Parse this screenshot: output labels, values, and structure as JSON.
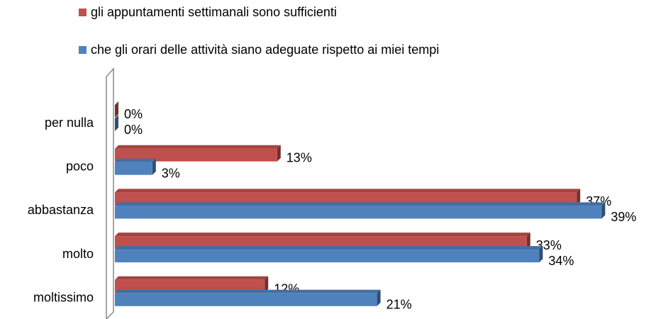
{
  "chart_data": {
    "type": "bar",
    "orientation": "horizontal",
    "categories": [
      "per nulla",
      "poco",
      "abbastanza",
      "molto",
      "moltissimo"
    ],
    "series": [
      {
        "name": "gli appuntamenti settimanali sono sufficienti",
        "color": "#c0504d",
        "values": [
          0,
          13,
          37,
          33,
          12
        ],
        "value_labels": [
          "0%",
          "13%",
          "37%",
          "33%",
          "12%"
        ]
      },
      {
        "name": "che gli orari delle attività siano adeguate rispetto ai miei tempi",
        "color": "#4f81bd",
        "values": [
          0,
          3,
          39,
          34,
          21
        ],
        "value_labels": [
          "0%",
          "3%",
          "39%",
          "34%",
          "21%"
        ]
      }
    ],
    "legend": "top"
  }
}
